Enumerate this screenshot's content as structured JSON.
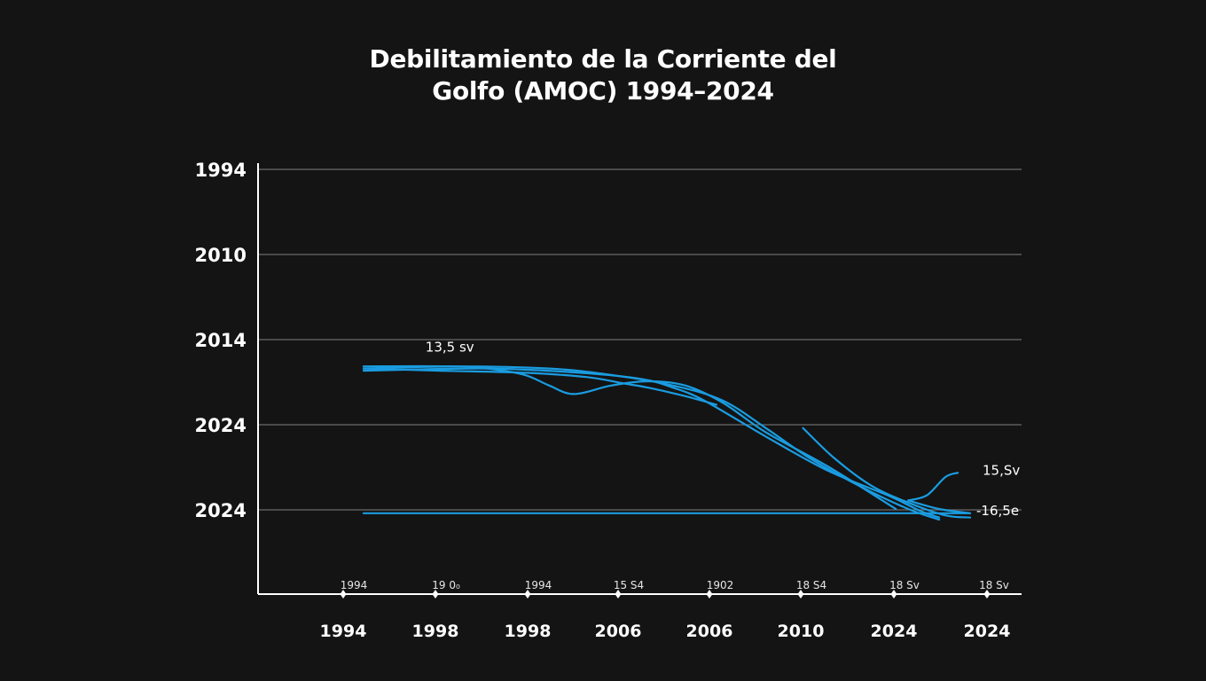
{
  "chart_data": {
    "type": "line",
    "title_lines": [
      "Debilitamiento de la Corriente del",
      "Golfo (AMOC) 1994–2024"
    ],
    "title": "Debilitamiento de la Corriente del Golfo (AMOC) 1994–2024",
    "y_tick_labels": [
      "1994",
      "2010",
      "2014",
      "2024",
      "2024"
    ],
    "x_tick_labels": [
      "1994",
      "1998",
      "1998",
      "2006",
      "2006",
      "2010",
      "2024",
      "2024"
    ],
    "x_sub_labels": [
      "1994",
      "19 0₀",
      "1994",
      "15 S4",
      "1902",
      "18 S4",
      "18 Sv",
      "18 Sv"
    ],
    "xlim": [
      0,
      1
    ],
    "ylim": [
      0,
      1
    ],
    "grid": true,
    "series": [
      {
        "name": "series-1",
        "x": [
          0.0,
          0.15,
          0.3,
          0.4,
          0.5,
          0.58,
          0.65,
          0.72,
          0.8,
          0.88,
          0.93
        ],
        "y": [
          0.53,
          0.535,
          0.53,
          0.515,
          0.49,
          0.455,
          0.39,
          0.32,
          0.255,
          0.2,
          0.175
        ]
      },
      {
        "name": "series-2",
        "x": [
          0.0,
          0.14,
          0.2,
          0.26,
          0.3,
          0.34,
          0.4,
          0.46,
          0.52,
          0.58,
          0.65,
          0.75,
          0.86
        ],
        "y": [
          0.535,
          0.535,
          0.53,
          0.515,
          0.49,
          0.47,
          0.49,
          0.5,
          0.49,
          0.45,
          0.38,
          0.3,
          0.2
        ]
      },
      {
        "name": "series-3",
        "x": [
          0.0,
          0.2,
          0.35,
          0.45,
          0.5,
          0.55,
          0.65,
          0.75,
          0.85,
          0.9,
          0.93
        ],
        "y": [
          0.525,
          0.53,
          0.52,
          0.505,
          0.485,
          0.455,
          0.37,
          0.29,
          0.23,
          0.195,
          0.18
        ]
      },
      {
        "name": "series-4",
        "x": [
          0.0,
          0.12,
          0.26,
          0.36,
          0.42,
          0.46,
          0.52,
          0.57
        ],
        "y": [
          0.53,
          0.525,
          0.52,
          0.51,
          0.495,
          0.485,
          0.465,
          0.445
        ]
      },
      {
        "name": "series-5",
        "x": [
          0.71,
          0.76,
          0.82,
          0.88,
          0.94,
          0.98
        ],
        "y": [
          0.39,
          0.32,
          0.255,
          0.215,
          0.185,
          0.18
        ]
      },
      {
        "name": "series-6",
        "x": [
          0.88,
          0.93,
          0.98
        ],
        "y": [
          0.22,
          0.2,
          0.19
        ]
      },
      {
        "name": "series-7",
        "x": [
          0.88,
          0.91,
          0.94,
          0.96
        ],
        "y": [
          0.22,
          0.232,
          0.275,
          0.285
        ]
      },
      {
        "name": "baseline",
        "x": [
          0.0,
          0.98
        ],
        "y": [
          0.19,
          0.19
        ]
      }
    ],
    "annotations": [
      {
        "text": "13,5 sv",
        "x": 0.1,
        "y": 0.57
      },
      {
        "text": "15,Sv",
        "x": 1.0,
        "y": 0.28
      },
      {
        "text": "-16,5e",
        "x": 0.99,
        "y": 0.185
      }
    ],
    "series_color": "#1a9ce0",
    "background": "#141414",
    "text_color": "#ffffff"
  }
}
